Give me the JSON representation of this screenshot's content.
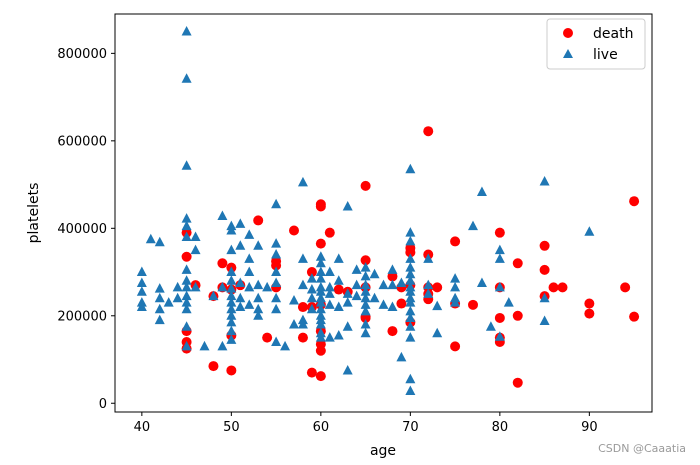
{
  "chart_data": {
    "type": "scatter",
    "xlabel": "age",
    "ylabel": "platelets",
    "xlim": [
      37,
      97
    ],
    "ylim": [
      -20000,
      890000
    ],
    "xticks": [
      40,
      50,
      60,
      70,
      80,
      90
    ],
    "yticks": [
      0,
      200000,
      400000,
      600000,
      800000
    ],
    "legend_position": "top-right",
    "grid": false,
    "series": [
      {
        "name": "death",
        "marker": "circle",
        "color": "#ff0000",
        "points": [
          [
            45,
            390000
          ],
          [
            45,
            335000
          ],
          [
            45,
            165000
          ],
          [
            45,
            140000
          ],
          [
            45,
            125000
          ],
          [
            46,
            270000
          ],
          [
            48,
            245000
          ],
          [
            48,
            85000
          ],
          [
            49,
            320000
          ],
          [
            49,
            265000
          ],
          [
            50,
            310000
          ],
          [
            50,
            260000
          ],
          [
            50,
            155000
          ],
          [
            50,
            75000
          ],
          [
            51,
            270000
          ],
          [
            53,
            418000
          ],
          [
            54,
            150000
          ],
          [
            55,
            325000
          ],
          [
            55,
            315000
          ],
          [
            55,
            265000
          ],
          [
            57,
            395000
          ],
          [
            58,
            220000
          ],
          [
            58,
            150000
          ],
          [
            59,
            300000
          ],
          [
            59,
            220000
          ],
          [
            59,
            70000
          ],
          [
            60,
            455000
          ],
          [
            60,
            450000
          ],
          [
            60,
            365000
          ],
          [
            60,
            225000
          ],
          [
            60,
            165000
          ],
          [
            60,
            135000
          ],
          [
            60,
            120000
          ],
          [
            60,
            62000
          ],
          [
            61,
            390000
          ],
          [
            62,
            260000
          ],
          [
            63,
            255000
          ],
          [
            65,
            497000
          ],
          [
            65,
            327000
          ],
          [
            65,
            265000
          ],
          [
            65,
            198000
          ],
          [
            65,
            195000
          ],
          [
            68,
            290000
          ],
          [
            68,
            165000
          ],
          [
            69,
            265000
          ],
          [
            69,
            228000
          ],
          [
            70,
            355000
          ],
          [
            70,
            345000
          ],
          [
            70,
            270000
          ],
          [
            70,
            185000
          ],
          [
            72,
            622000
          ],
          [
            72,
            340000
          ],
          [
            72,
            265000
          ],
          [
            72,
            250000
          ],
          [
            72,
            238000
          ],
          [
            73,
            265000
          ],
          [
            75,
            370000
          ],
          [
            75,
            228000
          ],
          [
            75,
            130000
          ],
          [
            77,
            225000
          ],
          [
            80,
            390000
          ],
          [
            80,
            265000
          ],
          [
            80,
            195000
          ],
          [
            80,
            150000
          ],
          [
            80,
            140000
          ],
          [
            82,
            320000
          ],
          [
            82,
            200000
          ],
          [
            82,
            47000
          ],
          [
            85,
            360000
          ],
          [
            85,
            305000
          ],
          [
            85,
            245000
          ],
          [
            86,
            265000
          ],
          [
            87,
            265000
          ],
          [
            90,
            228000
          ],
          [
            90,
            205000
          ],
          [
            94,
            265000
          ],
          [
            95,
            462000
          ],
          [
            95,
            198000
          ]
        ]
      },
      {
        "name": "live",
        "marker": "triangle",
        "color": "#1f77b4",
        "points": [
          [
            40,
            300000
          ],
          [
            40,
            275000
          ],
          [
            40,
            255000
          ],
          [
            40,
            230000
          ],
          [
            40,
            220000
          ],
          [
            41,
            375000
          ],
          [
            42,
            368000
          ],
          [
            42,
            262000
          ],
          [
            42,
            240000
          ],
          [
            42,
            215000
          ],
          [
            42,
            190000
          ],
          [
            43,
            230000
          ],
          [
            44,
            240000
          ],
          [
            44,
            265000
          ],
          [
            45,
            850000
          ],
          [
            45,
            742000
          ],
          [
            45,
            543000
          ],
          [
            45,
            422000
          ],
          [
            45,
            405000
          ],
          [
            45,
            380000
          ],
          [
            45,
            305000
          ],
          [
            45,
            280000
          ],
          [
            45,
            265000
          ],
          [
            45,
            245000
          ],
          [
            45,
            230000
          ],
          [
            45,
            215000
          ],
          [
            45,
            175000
          ],
          [
            45,
            130000
          ],
          [
            46,
            380000
          ],
          [
            46,
            265000
          ],
          [
            46,
            350000
          ],
          [
            47,
            130000
          ],
          [
            48,
            245000
          ],
          [
            49,
            428000
          ],
          [
            49,
            265000
          ],
          [
            49,
            130000
          ],
          [
            50,
            405000
          ],
          [
            50,
            395000
          ],
          [
            50,
            350000
          ],
          [
            50,
            300000
          ],
          [
            50,
            280000
          ],
          [
            50,
            262000
          ],
          [
            50,
            245000
          ],
          [
            50,
            230000
          ],
          [
            50,
            215000
          ],
          [
            50,
            200000
          ],
          [
            50,
            185000
          ],
          [
            50,
            165000
          ],
          [
            50,
            145000
          ],
          [
            51,
            410000
          ],
          [
            51,
            360000
          ],
          [
            51,
            275000
          ],
          [
            51,
            240000
          ],
          [
            51,
            220000
          ],
          [
            52,
            385000
          ],
          [
            52,
            330000
          ],
          [
            52,
            300000
          ],
          [
            52,
            265000
          ],
          [
            52,
            225000
          ],
          [
            53,
            360000
          ],
          [
            53,
            270000
          ],
          [
            53,
            240000
          ],
          [
            53,
            215000
          ],
          [
            53,
            200000
          ],
          [
            54,
            265000
          ],
          [
            55,
            455000
          ],
          [
            55,
            365000
          ],
          [
            55,
            340000
          ],
          [
            55,
            300000
          ],
          [
            55,
            275000
          ],
          [
            55,
            240000
          ],
          [
            55,
            215000
          ],
          [
            55,
            140000
          ],
          [
            56,
            130000
          ],
          [
            57,
            180000
          ],
          [
            57,
            235000
          ],
          [
            58,
            505000
          ],
          [
            58,
            330000
          ],
          [
            58,
            270000
          ],
          [
            58,
            190000
          ],
          [
            58,
            180000
          ],
          [
            59,
            285000
          ],
          [
            59,
            260000
          ],
          [
            59,
            240000
          ],
          [
            59,
            215000
          ],
          [
            60,
            335000
          ],
          [
            60,
            320000
          ],
          [
            60,
            300000
          ],
          [
            60,
            285000
          ],
          [
            60,
            265000
          ],
          [
            60,
            255000
          ],
          [
            60,
            240000
          ],
          [
            60,
            230000
          ],
          [
            60,
            215000
          ],
          [
            60,
            200000
          ],
          [
            60,
            190000
          ],
          [
            60,
            180000
          ],
          [
            60,
            160000
          ],
          [
            60,
            150000
          ],
          [
            61,
            300000
          ],
          [
            61,
            265000
          ],
          [
            61,
            250000
          ],
          [
            61,
            225000
          ],
          [
            61,
            150000
          ],
          [
            62,
            330000
          ],
          [
            62,
            280000
          ],
          [
            62,
            220000
          ],
          [
            62,
            155000
          ],
          [
            63,
            250000
          ],
          [
            63,
            230000
          ],
          [
            63,
            175000
          ],
          [
            63,
            450000
          ],
          [
            63,
            75000
          ],
          [
            64,
            305000
          ],
          [
            64,
            270000
          ],
          [
            64,
            245000
          ],
          [
            65,
            310000
          ],
          [
            65,
            290000
          ],
          [
            65,
            270000
          ],
          [
            65,
            255000
          ],
          [
            65,
            240000
          ],
          [
            65,
            225000
          ],
          [
            65,
            210000
          ],
          [
            65,
            180000
          ],
          [
            65,
            160000
          ],
          [
            66,
            295000
          ],
          [
            66,
            240000
          ],
          [
            67,
            270000
          ],
          [
            67,
            225000
          ],
          [
            68,
            305000
          ],
          [
            68,
            270000
          ],
          [
            68,
            220000
          ],
          [
            69,
            105000
          ],
          [
            69,
            275000
          ],
          [
            70,
            535000
          ],
          [
            70,
            390000
          ],
          [
            70,
            370000
          ],
          [
            70,
            330000
          ],
          [
            70,
            310000
          ],
          [
            70,
            295000
          ],
          [
            70,
            280000
          ],
          [
            70,
            265000
          ],
          [
            70,
            255000
          ],
          [
            70,
            240000
          ],
          [
            70,
            230000
          ],
          [
            70,
            210000
          ],
          [
            70,
            195000
          ],
          [
            70,
            175000
          ],
          [
            70,
            150000
          ],
          [
            70,
            55000
          ],
          [
            70,
            28000
          ],
          [
            72,
            330000
          ],
          [
            72,
            270000
          ],
          [
            72,
            250000
          ],
          [
            73,
            222000
          ],
          [
            73,
            160000
          ],
          [
            75,
            285000
          ],
          [
            75,
            265000
          ],
          [
            75,
            240000
          ],
          [
            75,
            230000
          ],
          [
            77,
            405000
          ],
          [
            78,
            483000
          ],
          [
            78,
            275000
          ],
          [
            79,
            175000
          ],
          [
            80,
            350000
          ],
          [
            80,
            330000
          ],
          [
            80,
            265000
          ],
          [
            80,
            152000
          ],
          [
            81,
            230000
          ],
          [
            85,
            507000
          ],
          [
            85,
            240000
          ],
          [
            85,
            188000
          ],
          [
            90,
            392000
          ]
        ]
      }
    ]
  },
  "watermark": "CSDN @Caaatia"
}
